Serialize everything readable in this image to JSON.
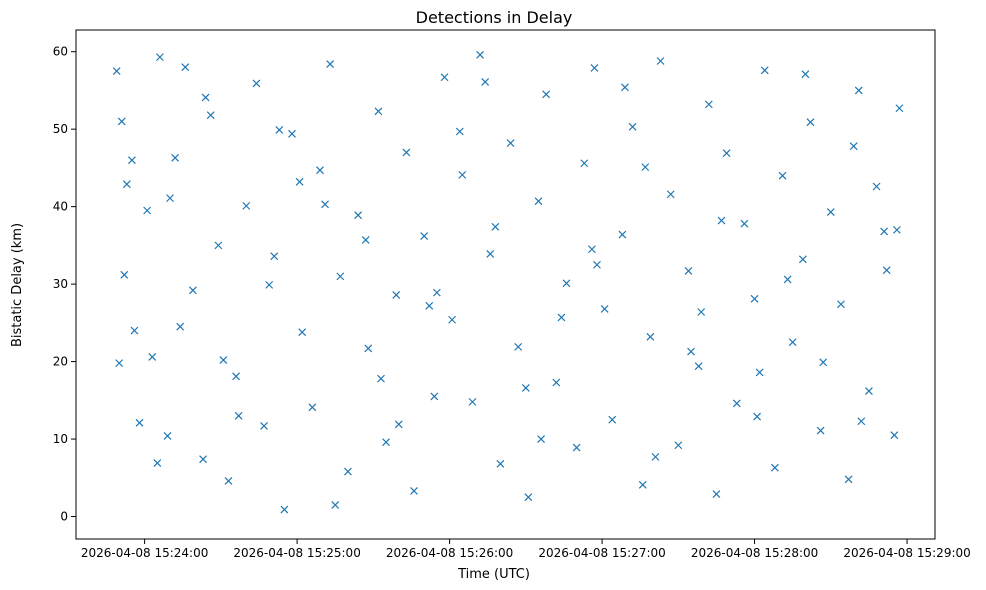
{
  "chart_data": {
    "type": "scatter",
    "title": "Detections in Delay",
    "xlabel": "Time (UTC)",
    "ylabel": "Bistatic Delay (km)",
    "x_is_time": true,
    "xlim": [
      "2026-04-08 15:23:33",
      "2026-04-08 15:29:11"
    ],
    "ylim": [
      -2.9,
      62.8
    ],
    "x_ticks": [
      "2026-04-08 15:24:00",
      "2026-04-08 15:25:00",
      "2026-04-08 15:26:00",
      "2026-04-08 15:27:00",
      "2026-04-08 15:28:00",
      "2026-04-08 15:29:00"
    ],
    "y_ticks": [
      0,
      10,
      20,
      30,
      40,
      50,
      60
    ],
    "marker": "x",
    "color": "#1f77b4",
    "grid": false,
    "legend": "none",
    "series": [
      {
        "x": [
          "2026-04-08 15:23:49",
          "2026-04-08 15:23:51",
          "2026-04-08 15:23:53",
          "2026-04-08 15:23:56",
          "2026-04-08 15:23:58",
          "2026-04-08 15:24:01",
          "2026-04-08 15:24:03",
          "2026-04-08 15:24:06",
          "2026-04-08 15:24:09",
          "2026-04-08 15:24:12",
          "2026-04-08 15:24:16",
          "2026-04-08 15:24:19",
          "2026-04-08 15:24:23",
          "2026-04-08 15:24:26",
          "2026-04-08 15:24:29",
          "2026-04-08 15:24:33",
          "2026-04-08 15:24:36",
          "2026-04-08 15:24:40",
          "2026-04-08 15:24:44",
          "2026-04-08 15:24:47",
          "2026-04-08 15:24:51",
          "2026-04-08 15:24:55",
          "2026-04-08 15:24:58",
          "2026-04-08 15:25:02",
          "2026-04-08 15:25:06",
          "2026-04-08 15:25:09",
          "2026-04-08 15:25:13",
          "2026-04-08 15:25:17",
          "2026-04-08 15:25:20",
          "2026-04-08 15:25:24",
          "2026-04-08 15:25:28",
          "2026-04-08 15:25:32",
          "2026-04-08 15:25:35",
          "2026-04-08 15:25:39",
          "2026-04-08 15:25:43",
          "2026-04-08 15:25:46",
          "2026-04-08 15:25:50",
          "2026-04-08 15:25:54",
          "2026-04-08 15:25:58",
          "2026-04-08 15:26:01",
          "2026-04-08 15:26:05",
          "2026-04-08 15:26:09",
          "2026-04-08 15:26:12",
          "2026-04-08 15:26:16",
          "2026-04-08 15:26:20",
          "2026-04-08 15:26:24",
          "2026-04-08 15:26:27",
          "2026-04-08 15:26:31",
          "2026-04-08 15:26:35",
          "2026-04-08 15:26:38",
          "2026-04-08 15:26:42",
          "2026-04-08 15:26:46",
          "2026-04-08 15:26:50",
          "2026-04-08 15:26:53",
          "2026-04-08 15:26:57",
          "2026-04-08 15:27:01",
          "2026-04-08 15:27:04",
          "2026-04-08 15:27:08",
          "2026-04-08 15:27:12",
          "2026-04-08 15:27:16",
          "2026-04-08 15:27:19",
          "2026-04-08 15:27:23",
          "2026-04-08 15:27:27",
          "2026-04-08 15:27:30",
          "2026-04-08 15:27:34",
          "2026-04-08 15:27:38",
          "2026-04-08 15:27:42",
          "2026-04-08 15:27:45",
          "2026-04-08 15:27:49",
          "2026-04-08 15:27:53",
          "2026-04-08 15:27:56",
          "2026-04-08 15:28:00",
          "2026-04-08 15:28:04",
          "2026-04-08 15:28:08",
          "2026-04-08 15:28:11",
          "2026-04-08 15:28:15",
          "2026-04-08 15:28:19",
          "2026-04-08 15:28:22",
          "2026-04-08 15:28:26",
          "2026-04-08 15:28:30",
          "2026-04-08 15:28:34",
          "2026-04-08 15:28:37",
          "2026-04-08 15:28:41",
          "2026-04-08 15:28:45",
          "2026-04-08 15:28:48",
          "2026-04-08 15:28:52",
          "2026-04-08 15:28:55",
          "2026-04-08 15:28:57",
          "2026-04-08 15:23:50",
          "2026-04-08 15:23:55",
          "2026-04-08 15:24:05",
          "2026-04-08 15:24:14",
          "2026-04-08 15:24:24",
          "2026-04-08 15:24:37",
          "2026-04-08 15:24:49",
          "2026-04-08 15:25:01",
          "2026-04-08 15:25:15",
          "2026-04-08 15:25:27",
          "2026-04-08 15:25:40",
          "2026-04-08 15:25:52",
          "2026-04-08 15:26:04",
          "2026-04-08 15:26:18",
          "2026-04-08 15:26:30",
          "2026-04-08 15:26:44",
          "2026-04-08 15:26:56",
          "2026-04-08 15:27:09",
          "2026-04-08 15:27:21",
          "2026-04-08 15:27:35",
          "2026-04-08 15:27:47",
          "2026-04-08 15:28:01",
          "2026-04-08 15:28:13",
          "2026-04-08 15:28:27",
          "2026-04-08 15:28:39",
          "2026-04-08 15:28:51",
          "2026-04-08 15:23:52",
          "2026-04-08 15:24:10",
          "2026-04-08 15:24:31",
          "2026-04-08 15:24:53",
          "2026-04-08 15:25:11",
          "2026-04-08 15:25:33",
          "2026-04-08 15:25:55",
          "2026-04-08 15:26:14",
          "2026-04-08 15:26:36",
          "2026-04-08 15:26:58",
          "2026-04-08 15:27:17",
          "2026-04-08 15:27:39",
          "2026-04-08 15:28:02",
          "2026-04-08 15:28:20",
          "2026-04-08 15:28:42",
          "2026-04-08 15:28:56"
        ],
        "y": [
          57.5,
          51.0,
          42.9,
          24.0,
          12.1,
          39.5,
          20.6,
          59.3,
          10.4,
          46.3,
          58.0,
          29.2,
          7.4,
          51.8,
          35.0,
          4.6,
          18.1,
          40.1,
          55.9,
          11.7,
          33.6,
          0.9,
          49.4,
          23.8,
          14.1,
          44.7,
          58.4,
          31.0,
          5.8,
          38.9,
          21.7,
          52.3,
          9.6,
          28.6,
          47.0,
          3.3,
          36.2,
          15.5,
          56.7,
          25.4,
          44.1,
          14.8,
          59.6,
          33.9,
          6.8,
          48.2,
          21.9,
          2.5,
          40.7,
          54.5,
          17.3,
          30.1,
          8.9,
          45.6,
          57.9,
          26.8,
          12.5,
          36.4,
          50.3,
          4.1,
          23.2,
          58.8,
          41.6,
          9.2,
          31.7,
          19.4,
          53.2,
          2.9,
          46.9,
          14.6,
          37.8,
          28.1,
          57.6,
          6.3,
          44.0,
          22.5,
          33.2,
          50.9,
          11.1,
          39.3,
          27.4,
          4.8,
          55.0,
          16.2,
          42.6,
          31.8,
          10.5,
          52.7,
          19.8,
          46.0,
          6.9,
          24.5,
          54.1,
          13.0,
          29.9,
          43.2,
          1.5,
          35.7,
          11.9,
          27.2,
          49.7,
          37.4,
          16.6,
          25.7,
          34.5,
          55.4,
          7.7,
          21.3,
          38.2,
          12.9,
          30.6,
          19.9,
          47.8,
          36.8,
          31.2,
          41.1,
          20.2,
          49.9,
          40.3,
          17.8,
          28.9,
          56.1,
          10.0,
          32.5,
          45.1,
          26.4,
          18.6,
          57.1,
          12.3,
          37.0
        ]
      }
    ]
  }
}
